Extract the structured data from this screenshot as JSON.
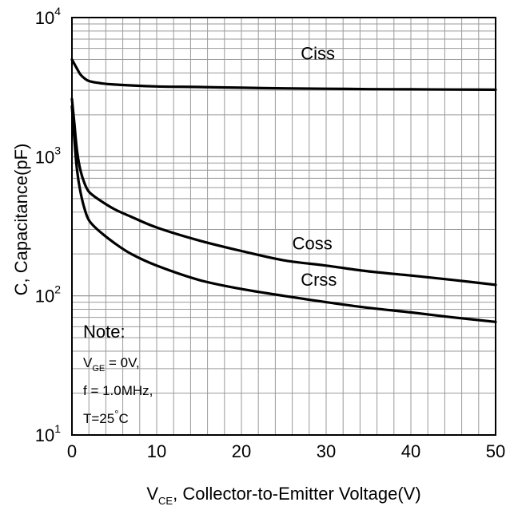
{
  "chart_data": {
    "type": "line",
    "title": "",
    "xlabel": {
      "var": "V",
      "sub": "CE",
      "rest": ", Collector-to-Emitter Voltage(V)"
    },
    "ylabel": "C, Capacitance(pF)",
    "xlim": [
      0,
      50
    ],
    "ylim": [
      10,
      10000
    ],
    "yscale": "log",
    "grid": true,
    "x_ticks": [
      0,
      10,
      20,
      30,
      40,
      50
    ],
    "y_ticks": [
      {
        "value": 10,
        "base": "10",
        "exp": "1"
      },
      {
        "value": 100,
        "base": "10",
        "exp": "2"
      },
      {
        "value": 1000,
        "base": "10",
        "exp": "3"
      },
      {
        "value": 10000,
        "base": "10",
        "exp": "4"
      }
    ],
    "series": [
      {
        "name": "Ciss",
        "label_at": [
          27,
          5000
        ],
        "x": [
          0,
          0.5,
          1,
          1.5,
          2,
          3,
          5,
          10,
          15,
          20,
          25,
          30,
          35,
          40,
          45,
          50
        ],
        "y": [
          5000,
          4400,
          3900,
          3650,
          3500,
          3400,
          3300,
          3200,
          3170,
          3130,
          3100,
          3080,
          3060,
          3050,
          3040,
          3030
        ]
      },
      {
        "name": "Coss",
        "label_at": [
          26,
          215
        ],
        "x": [
          0,
          0.3,
          0.6,
          1,
          1.5,
          2,
          3,
          5,
          7,
          10,
          15,
          20,
          25,
          30,
          35,
          40,
          45,
          50
        ],
        "y": [
          2600,
          1700,
          1100,
          800,
          640,
          560,
          500,
          420,
          370,
          310,
          250,
          210,
          180,
          165,
          150,
          140,
          130,
          120
        ]
      },
      {
        "name": "Crss",
        "label_at": [
          27,
          118
        ],
        "x": [
          0,
          0.3,
          0.6,
          1,
          1.5,
          2,
          3,
          5,
          7,
          10,
          15,
          20,
          25,
          30,
          35,
          40,
          45,
          50
        ],
        "y": [
          2300,
          1300,
          800,
          560,
          420,
          350,
          300,
          240,
          200,
          165,
          130,
          112,
          100,
          90,
          82,
          76,
          70,
          65
        ]
      }
    ],
    "annotation": {
      "title": "Note:",
      "line1_var": "V",
      "line1_sub": "GE",
      "line1_rest": " = 0V,",
      "line2": "f = 1.0MHz,",
      "line3_pre": "T=25",
      "line3_deg": "°",
      "line3_post": "C"
    }
  }
}
